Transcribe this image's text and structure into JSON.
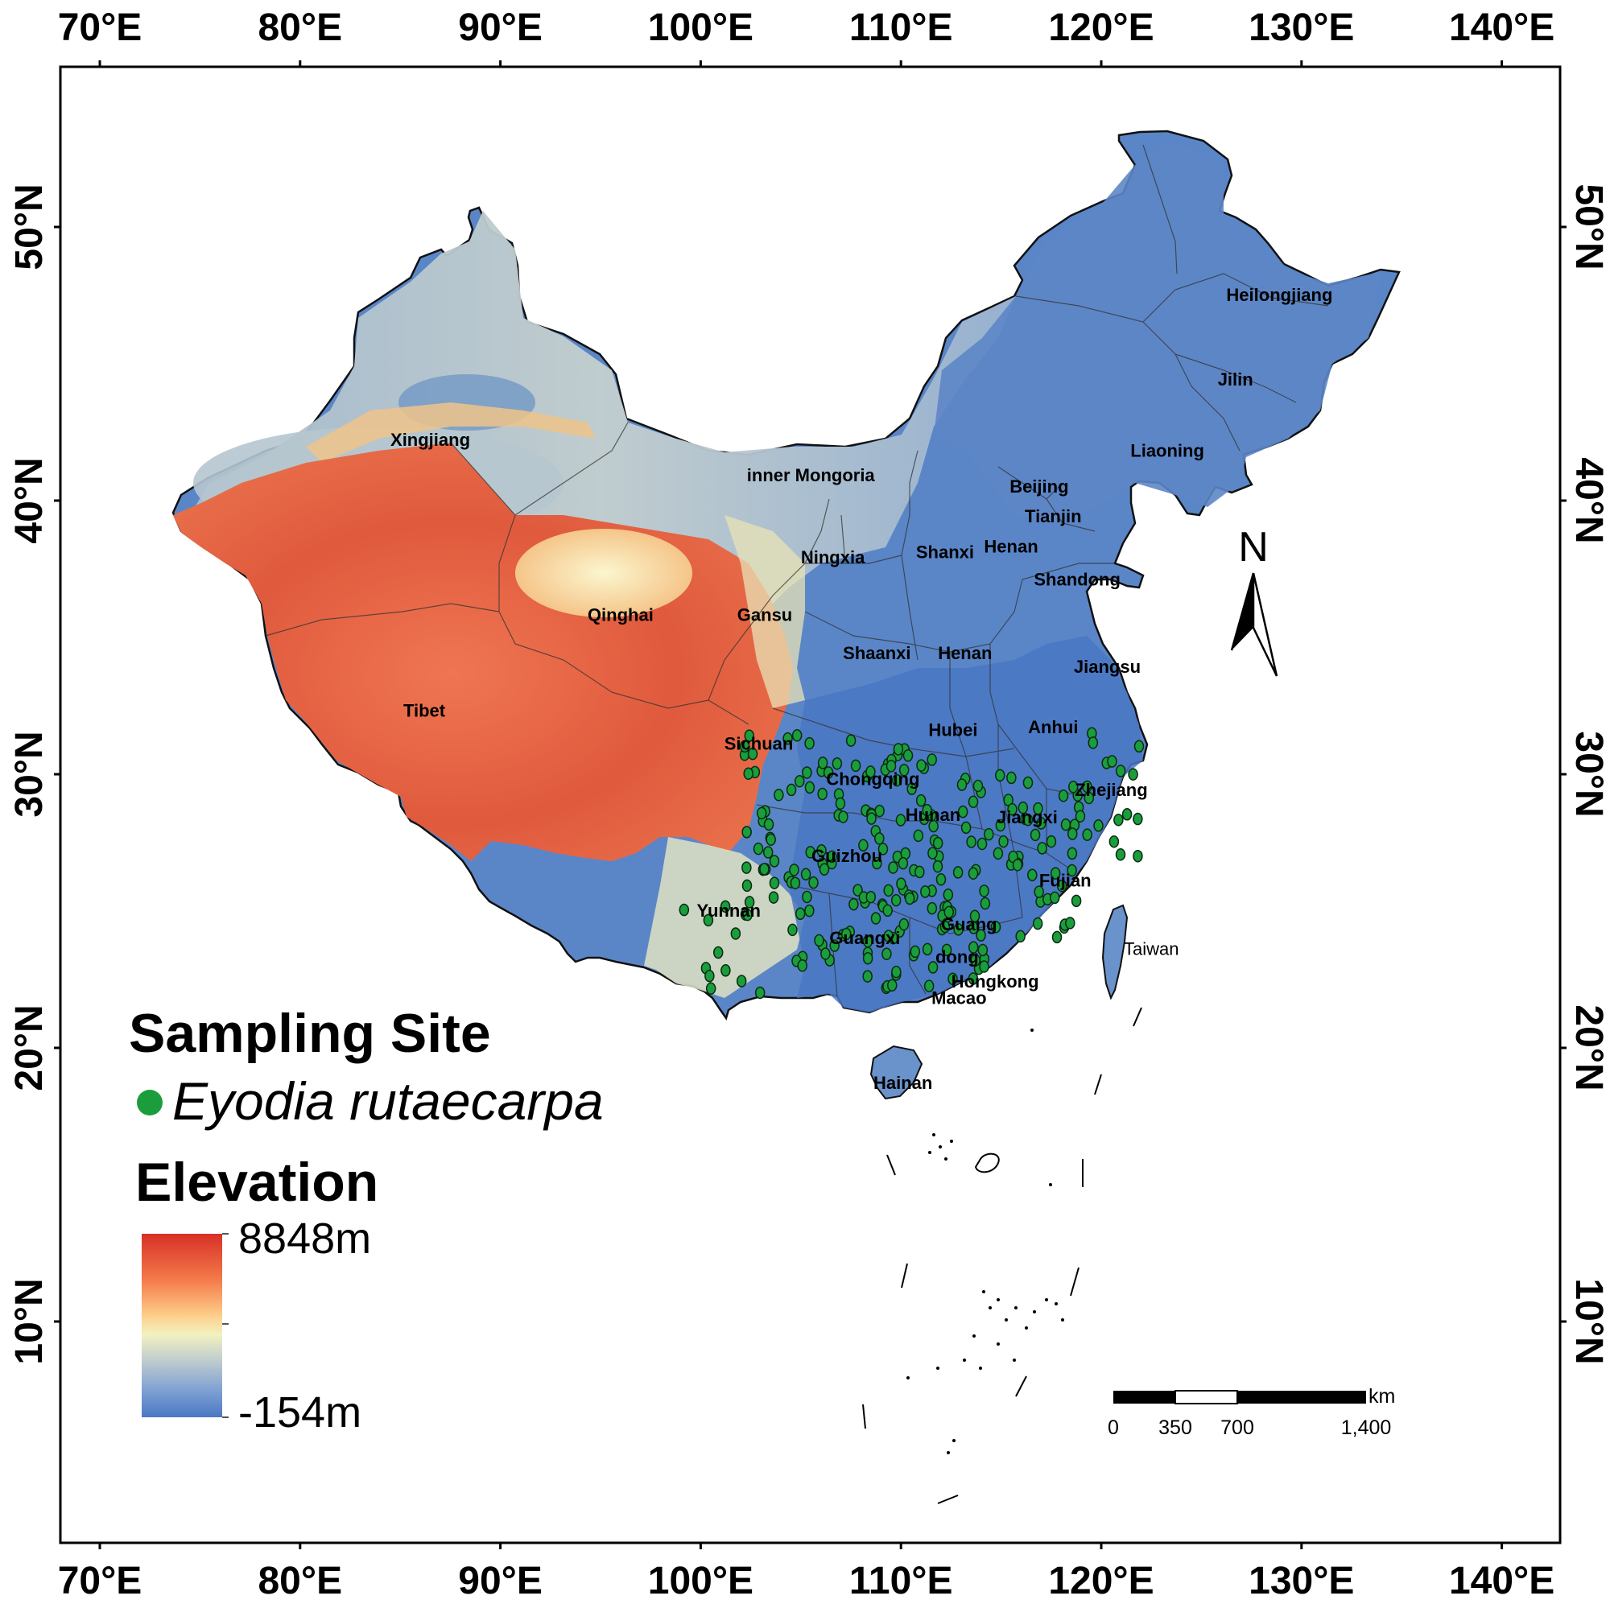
{
  "map": {
    "longitude_ticks": [
      "70°E",
      "80°E",
      "90°E",
      "100°E",
      "110°E",
      "120°E",
      "130°E",
      "140°E"
    ],
    "latitude_ticks": [
      "50°N",
      "40°N",
      "30°N",
      "20°N",
      "10°N"
    ],
    "provinces": [
      {
        "name": "Xingjiang",
        "lon": 86.5,
        "lat": 42.0
      },
      {
        "name": "inner Mongoria",
        "lon": 105.5,
        "lat": 40.7
      },
      {
        "name": "Heilongjiang",
        "lon": 128.9,
        "lat": 47.3
      },
      {
        "name": "Jilin",
        "lon": 126.7,
        "lat": 44.2
      },
      {
        "name": "Liaoning",
        "lon": 123.3,
        "lat": 41.6
      },
      {
        "name": "Beijing",
        "lon": 116.9,
        "lat": 40.3
      },
      {
        "name": "Tianjin",
        "lon": 117.6,
        "lat": 39.2
      },
      {
        "name": "Ningxia",
        "lon": 106.6,
        "lat": 37.7
      },
      {
        "name": "Shanxi",
        "lon": 112.2,
        "lat": 37.9
      },
      {
        "name": "Henan",
        "lon": 115.5,
        "lat": 38.1
      },
      {
        "name": "Shandong",
        "lon": 118.8,
        "lat": 36.9
      },
      {
        "name": "Qinghai",
        "lon": 96.0,
        "lat": 35.6
      },
      {
        "name": "Gansu",
        "lon": 103.2,
        "lat": 35.6
      },
      {
        "name": "Shaanxi",
        "lon": 108.8,
        "lat": 34.2
      },
      {
        "name": "Henan",
        "lon": 113.2,
        "lat": 34.2
      },
      {
        "name": "Jiangsu",
        "lon": 120.3,
        "lat": 33.7
      },
      {
        "name": "Tibet",
        "lon": 86.2,
        "lat": 32.1
      },
      {
        "name": "Sichuan",
        "lon": 102.9,
        "lat": 30.9
      },
      {
        "name": "Hubei",
        "lon": 112.6,
        "lat": 31.4
      },
      {
        "name": "Anhui",
        "lon": 117.6,
        "lat": 31.5
      },
      {
        "name": "Chongqing",
        "lon": 108.6,
        "lat": 29.6
      },
      {
        "name": "Zhejiang",
        "lon": 120.5,
        "lat": 29.2
      },
      {
        "name": "Hunan",
        "lon": 111.6,
        "lat": 28.3
      },
      {
        "name": "Jiangxi",
        "lon": 116.3,
        "lat": 28.2
      },
      {
        "name": "Guizhou",
        "lon": 107.3,
        "lat": 26.8
      },
      {
        "name": "Fujian",
        "lon": 118.2,
        "lat": 25.9
      },
      {
        "name": "Yunnan",
        "lon": 101.4,
        "lat": 24.8
      },
      {
        "name": "Guangxi",
        "lon": 108.2,
        "lat": 23.8
      },
      {
        "name": "Guang",
        "lon": 113.4,
        "lat": 24.3
      },
      {
        "name": "dong",
        "lon": 112.8,
        "lat": 23.1
      },
      {
        "name": "Taiwan",
        "lon": 122.5,
        "lat": 23.4
      },
      {
        "name": "Hongkong",
        "lon": 114.7,
        "lat": 22.2
      },
      {
        "name": "Macao",
        "lon": 112.9,
        "lat": 21.6
      },
      {
        "name": "Hainan",
        "lon": 110.1,
        "lat": 18.5
      }
    ]
  },
  "legend": {
    "title": "Sampling  Site",
    "species": "Eyodia rutaecarpa",
    "species_color": "#1a9e3c",
    "elevation_title": "Elevation",
    "elevation_max": "8848m",
    "elevation_min": "-154m",
    "ramp_colors": [
      "#d73027",
      "#f47a4a",
      "#fdd08c",
      "#f2f2c0",
      "#bcc9cf",
      "#7fa2d2",
      "#4a78c4"
    ]
  },
  "north_arrow": {
    "label": "N"
  },
  "scale_bar": {
    "unit": "km",
    "ticks": [
      "0",
      "350",
      "700",
      "1,400"
    ]
  },
  "colors": {
    "lowland": "#4f7dc6",
    "plateau": "#e0553a",
    "border": "#222222",
    "sample_dot": "#1a9e3c"
  }
}
